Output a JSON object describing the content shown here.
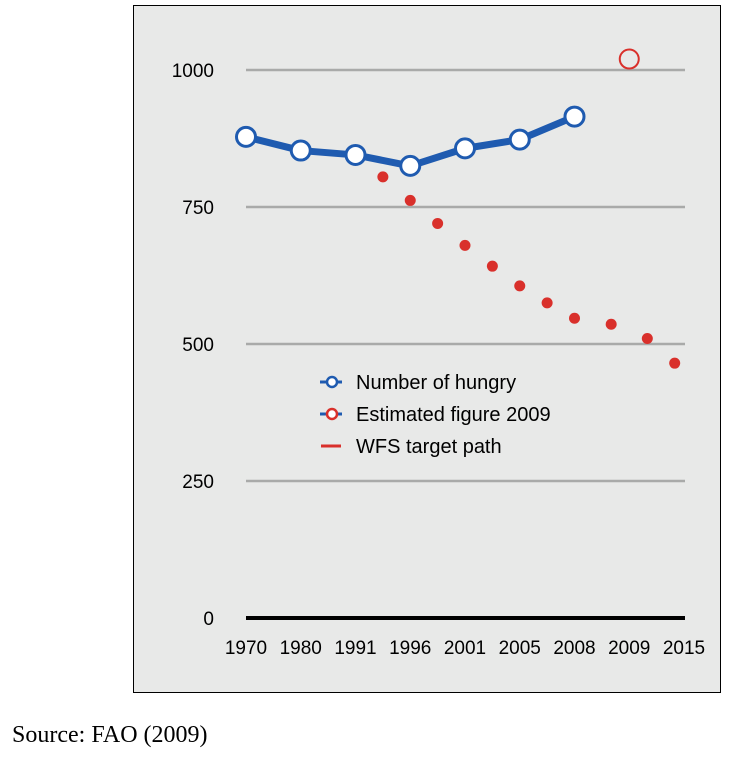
{
  "chart_data": {
    "type": "line",
    "categories": [
      "1970",
      "1980",
      "1991",
      "1996",
      "2001",
      "2005",
      "2008",
      "2009",
      "2015"
    ],
    "yticks": [
      0,
      250,
      500,
      750,
      1000
    ],
    "ylim": [
      0,
      1100
    ],
    "grid": true,
    "legend_placement": "center",
    "series": [
      {
        "name": "Number of hungry",
        "kind": "line-marker",
        "color": "#1f5bb0",
        "points": [
          {
            "x": 0,
            "y": 878
          },
          {
            "x": 1,
            "y": 853
          },
          {
            "x": 2,
            "y": 845
          },
          {
            "x": 3,
            "y": 825
          },
          {
            "x": 4,
            "y": 857
          },
          {
            "x": 5,
            "y": 873
          },
          {
            "x": 6,
            "y": 915
          }
        ]
      },
      {
        "name": "Estimated figure 2009",
        "kind": "marker",
        "color": "#d9302b",
        "points": [
          {
            "x": 7,
            "y": 1020
          }
        ]
      },
      {
        "name": "WFS target path",
        "kind": "dots",
        "color": "#d9302b",
        "points": [
          {
            "x": 2.5,
            "y": 805
          },
          {
            "x": 3,
            "y": 762
          },
          {
            "x": 3.5,
            "y": 720
          },
          {
            "x": 4,
            "y": 680
          },
          {
            "x": 4.5,
            "y": 642
          },
          {
            "x": 5,
            "y": 606
          },
          {
            "x": 5.5,
            "y": 575
          },
          {
            "x": 6,
            "y": 547
          },
          {
            "x": 6.67,
            "y": 536
          },
          {
            "x": 7.33,
            "y": 510
          },
          {
            "x": 7.83,
            "y": 465
          }
        ]
      }
    ]
  },
  "source": "Source: FAO (2009)"
}
